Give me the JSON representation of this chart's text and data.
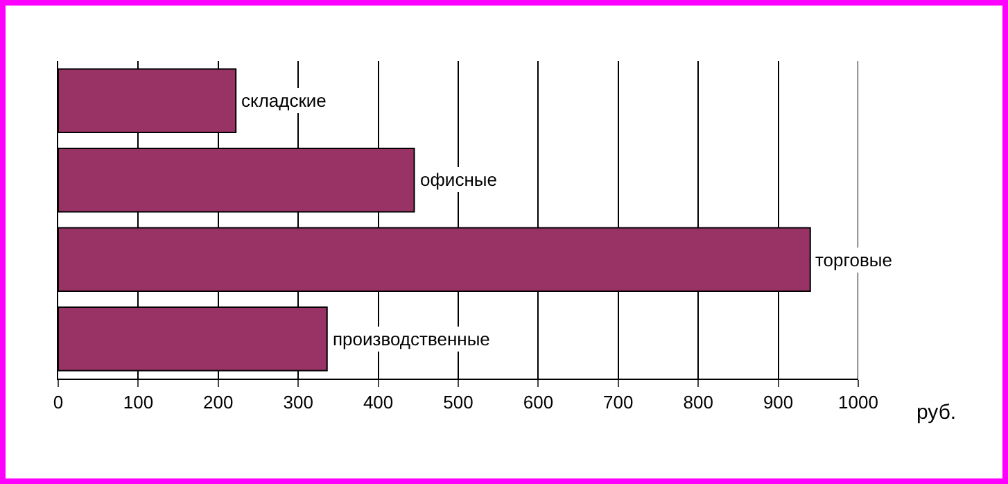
{
  "chart_data": {
    "type": "bar",
    "orientation": "horizontal",
    "categories": [
      "складские",
      "офисные",
      "торговые",
      "производственные"
    ],
    "values": [
      222,
      445,
      940,
      336
    ],
    "color": "#993366",
    "xlim": [
      0,
      1000
    ],
    "xticks": [
      0,
      100,
      200,
      300,
      400,
      500,
      600,
      700,
      800,
      900,
      1000
    ],
    "xlabel": "руб.",
    "grid": "x",
    "tick_labels": "x"
  }
}
